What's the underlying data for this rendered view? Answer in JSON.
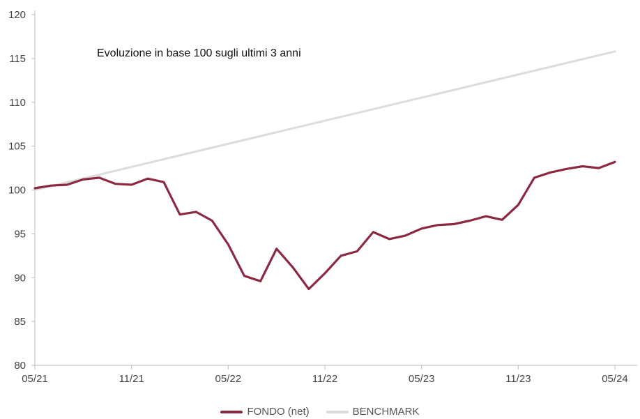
{
  "chart_data": {
    "type": "line",
    "title": "Evoluzione in base 100 sugli ultimi 3 anni",
    "xlabel": "",
    "ylabel": "",
    "x_ticks": [
      "05/21",
      "11/21",
      "05/22",
      "11/22",
      "05/23",
      "11/23",
      "05/24"
    ],
    "ylim": [
      80,
      120
    ],
    "y_ticks": [
      "80",
      "85",
      "90",
      "95",
      "100",
      "105",
      "110",
      "115",
      "120"
    ],
    "grid": false,
    "legend_position": "bottom-center",
    "series": [
      {
        "name": "FONDO (net)",
        "color": "#8b2942",
        "x": [
          "05/21",
          "06/21",
          "07/21",
          "08/21",
          "09/21",
          "10/21",
          "11/21",
          "12/21",
          "01/22",
          "02/22",
          "03/22",
          "04/22",
          "05/22",
          "06/22",
          "07/22",
          "08/22",
          "09/22",
          "10/22",
          "11/22",
          "12/22",
          "01/23",
          "02/23",
          "03/23",
          "04/23",
          "05/23",
          "06/23",
          "07/23",
          "08/23",
          "09/23",
          "10/23",
          "11/23",
          "12/23",
          "01/24",
          "02/24",
          "03/24",
          "04/24",
          "05/24"
        ],
        "y": [
          100.2,
          100.5,
          100.6,
          101.2,
          101.4,
          100.7,
          100.6,
          101.3,
          100.9,
          97.2,
          97.5,
          96.5,
          93.8,
          90.2,
          89.6,
          93.3,
          91.2,
          88.7,
          90.5,
          92.5,
          93.0,
          95.2,
          94.4,
          94.8,
          95.6,
          96.0,
          96.1,
          96.5,
          97.0,
          96.6,
          98.3,
          101.4,
          102.0,
          102.4,
          102.7,
          102.5,
          103.2
        ]
      },
      {
        "name": "BENCHMARK",
        "color": "#dcdcdc",
        "x": [
          "05/21",
          "05/24"
        ],
        "y": [
          100.0,
          115.8
        ]
      }
    ]
  }
}
